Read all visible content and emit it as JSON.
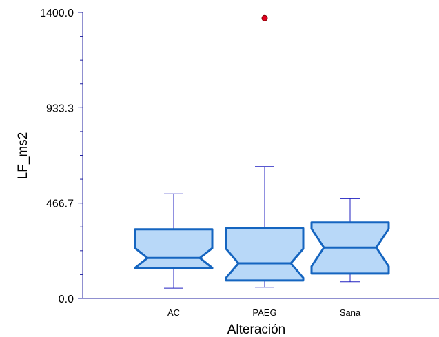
{
  "chart_data": {
    "type": "boxplot",
    "notched": true,
    "xlabel": "Alteración",
    "ylabel": "LF_ms2",
    "ylim": [
      0,
      1400
    ],
    "yticks": [
      {
        "value": 0,
        "label": "0.0"
      },
      {
        "value": 466.7,
        "label": "466.7"
      },
      {
        "value": 933.3,
        "label": "933.3"
      },
      {
        "value": 1400,
        "label": "1400.0"
      }
    ],
    "minor_tick_step": 116.67,
    "categories": [
      "AC",
      "PAEG",
      "Sana"
    ],
    "boxes": [
      {
        "category": "AC",
        "whisker_low": 50,
        "q1": 148,
        "median": 198,
        "q3": 338,
        "whisker_high": 512,
        "notch_low": 150,
        "notch_high": 246,
        "outliers": []
      },
      {
        "category": "PAEG",
        "whisker_low": 55,
        "q1": 88,
        "median": 172,
        "q3": 343,
        "whisker_high": 645,
        "notch_low": 101,
        "notch_high": 243,
        "outliers": [
          1372
        ]
      },
      {
        "category": "Sana",
        "whisker_low": 82,
        "q1": 122,
        "median": 249,
        "q3": 372,
        "whisker_high": 488,
        "notch_low": 157,
        "notch_high": 341,
        "outliers": []
      }
    ],
    "colors": {
      "box_fill": "#b8d8f8",
      "box_edge": "#1565c0",
      "whisker": "#2020c0",
      "axis": "#2020a0",
      "outlier_fill": "#e00020",
      "outlier_edge": "#800000"
    }
  }
}
